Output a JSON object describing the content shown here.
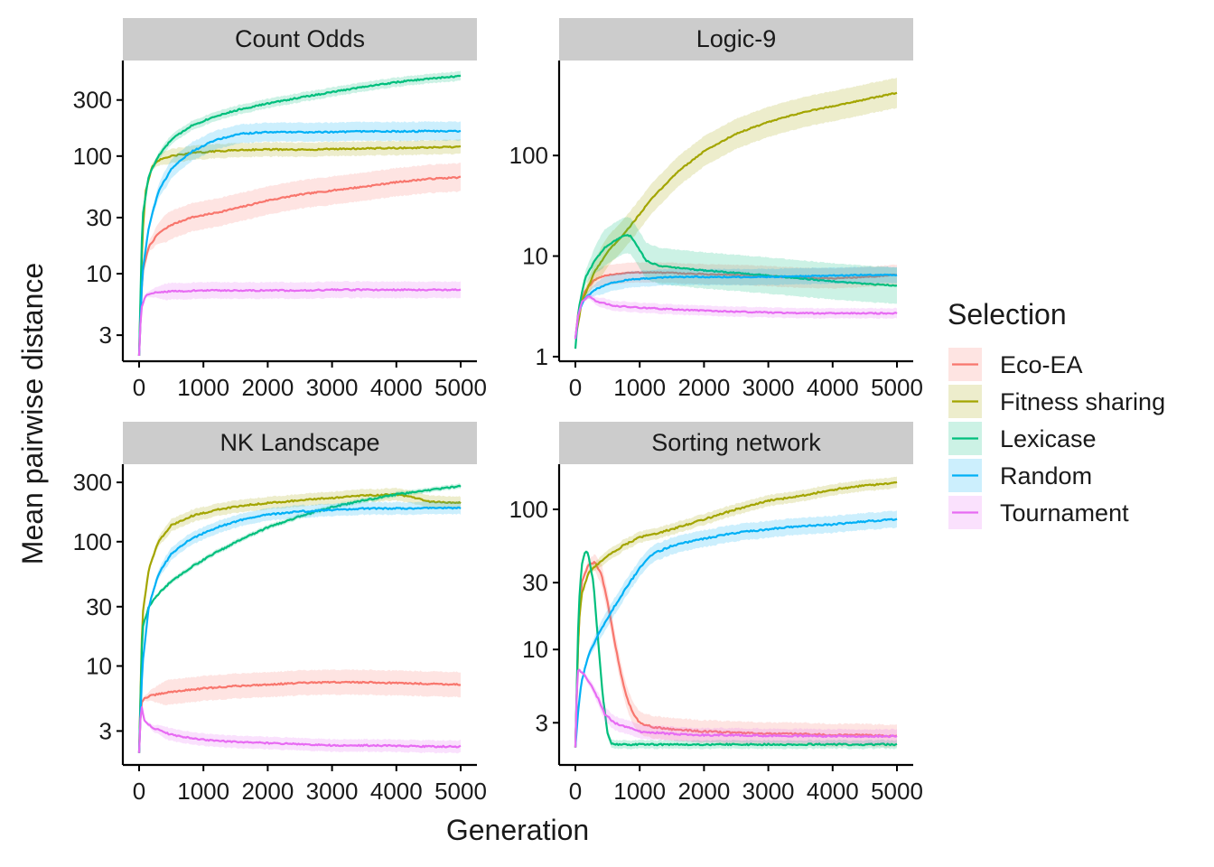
{
  "colors": {
    "Eco-EA": "#F8766D",
    "Fitness sharing": "#A3A500",
    "Lexicase": "#00BF7D",
    "Random": "#00B0F6",
    "Tournament": "#E76BF3",
    "strip": "#cccccc",
    "axis": "#000000"
  },
  "chart_data": {
    "type": "line",
    "x_label": "Generation",
    "y_label": "Mean pairwise distance",
    "y_scale": "log10",
    "grid": false,
    "legend": {
      "title": "Selection",
      "position": "right",
      "entries": [
        "Eco-EA",
        "Fitness sharing",
        "Lexicase",
        "Random",
        "Tournament"
      ]
    },
    "panels": [
      {
        "title": "Count Odds",
        "xlim": [
          0,
          5000
        ],
        "x_ticks": [
          0,
          1000,
          2000,
          3000,
          4000,
          5000
        ],
        "x_tick_labels": [
          "0",
          "1000",
          "2000",
          "3000",
          "4000",
          "5000"
        ],
        "ylim": [
          1.8,
          650
        ],
        "y_ticks": [
          3,
          10,
          30,
          100,
          300
        ],
        "y_tick_labels": [
          "3",
          "10",
          "30",
          "100",
          "300"
        ],
        "series": [
          {
            "name": "Eco-EA",
            "x": [
              0,
              50,
              150,
              300,
              500,
              800,
              1200,
              1600,
              2000,
              2500,
              3000,
              3500,
              4000,
              4500,
              5000
            ],
            "y": [
              2,
              10,
              17,
              22,
              26,
              30,
              33,
              37,
              42,
              47,
              51,
              55,
              60,
              64,
              66
            ],
            "band": 0.12
          },
          {
            "name": "Fitness sharing",
            "x": [
              0,
              50,
              100,
              200,
              300,
              500,
              800,
              1200,
              1600,
              2000,
              2500,
              3000,
              3500,
              4000,
              4500,
              5000
            ],
            "y": [
              2,
              20,
              50,
              80,
              92,
              100,
              106,
              110,
              113,
              114,
              113,
              115,
              116,
              117,
              118,
              120
            ],
            "band": 0.06
          },
          {
            "name": "Lexicase",
            "x": [
              0,
              50,
              150,
              300,
              500,
              800,
              1200,
              1600,
              2000,
              2500,
              3000,
              3500,
              4000,
              4500,
              5000
            ],
            "y": [
              2,
              30,
              68,
              100,
              138,
              180,
              220,
              252,
              280,
              315,
              350,
              390,
              425,
              455,
              480
            ],
            "band": 0.04
          },
          {
            "name": "Random",
            "x": [
              0,
              50,
              150,
              300,
              500,
              800,
              1200,
              1600,
              2000,
              2500,
              3000,
              3500,
              4000,
              4500,
              5000
            ],
            "y": [
              2,
              10,
              25,
              50,
              78,
              108,
              138,
              155,
              160,
              160,
              160,
              162,
              162,
              163,
              163
            ],
            "band": 0.08
          },
          {
            "name": "Tournament",
            "x": [
              0,
              30,
              100,
              300,
              600,
              1000,
              1500,
              2000,
              2500,
              3000,
              3500,
              4000,
              4500,
              5000
            ],
            "y": [
              2,
              5,
              6.5,
              7,
              7.1,
              7.2,
              7.2,
              7.2,
              7.2,
              7.3,
              7.3,
              7.3,
              7.3,
              7.3
            ],
            "band": 0.07
          }
        ]
      },
      {
        "title": "Logic-9",
        "xlim": [
          0,
          5000
        ],
        "x_ticks": [
          0,
          1000,
          2000,
          3000,
          4000,
          5000
        ],
        "x_tick_labels": [
          "0",
          "1000",
          "2000",
          "3000",
          "4000",
          "5000"
        ],
        "ylim": [
          0.9,
          880
        ],
        "y_ticks": [
          1,
          10,
          100
        ],
        "y_tick_labels": [
          "1",
          "10",
          "100"
        ],
        "series": [
          {
            "name": "Eco-EA",
            "x": [
              0,
              50,
              150,
              300,
              500,
              800,
              1100,
              1500,
              2000,
              2500,
              3000,
              3500,
              4000,
              4500,
              5000
            ],
            "y": [
              1.5,
              3,
              4.5,
              5.8,
              6.5,
              6.8,
              6.9,
              6.8,
              6.6,
              6.5,
              6.3,
              6.1,
              6.0,
              6.2,
              6.5
            ],
            "band": 0.1
          },
          {
            "name": "Fitness sharing",
            "x": [
              0,
              100,
              300,
              500,
              800,
              1200,
              1600,
              2000,
              2500,
              3000,
              3500,
              4000,
              4500,
              5000
            ],
            "y": [
              1.5,
              3.5,
              7,
              11,
              18,
              38,
              70,
              110,
              165,
              215,
              265,
              310,
              360,
              420
            ],
            "band": 0.15
          },
          {
            "name": "Lexicase",
            "x": [
              0,
              50,
              150,
              300,
              450,
              600,
              750,
              850,
              950,
              1100,
              1300,
              1600,
              2000,
              2500,
              3000,
              3500,
              4000,
              4500,
              5000
            ],
            "y": [
              1.2,
              3,
              6,
              9,
              12,
              14,
              16,
              16,
              13,
              9,
              8,
              7.6,
              7.2,
              6.8,
              6.4,
              6.0,
              5.6,
              5.3,
              5.1
            ],
            "band": 0.18
          },
          {
            "name": "Random",
            "x": [
              0,
              50,
              150,
              300,
              500,
              800,
              1100,
              1500,
              2000,
              2500,
              3000,
              3500,
              4000,
              4500,
              5000
            ],
            "y": [
              1.5,
              2.8,
              3.8,
              4.6,
              5.3,
              5.8,
              6.0,
              6.2,
              6.2,
              6.2,
              6.2,
              6.3,
              6.4,
              6.5,
              6.5
            ],
            "band": 0.08
          },
          {
            "name": "Tournament",
            "x": [
              0,
              40,
              100,
              200,
              350,
              600,
              900,
              1300,
              1800,
              2500,
              3000,
              3500,
              4000,
              4500,
              5000
            ],
            "y": [
              1.5,
              2.5,
              3.5,
              4.0,
              3.5,
              3.2,
              3.1,
              3.0,
              2.9,
              2.8,
              2.75,
              2.7,
              2.7,
              2.7,
              2.7
            ],
            "band": 0.05
          }
        ]
      },
      {
        "title": "NK Landscape",
        "xlim": [
          0,
          5000
        ],
        "x_ticks": [
          0,
          1000,
          2000,
          3000,
          4000,
          5000
        ],
        "x_tick_labels": [
          "0",
          "1000",
          "2000",
          "3000",
          "4000",
          "5000"
        ],
        "ylim": [
          1.6,
          420
        ],
        "y_ticks": [
          3,
          10,
          30,
          100,
          300
        ],
        "y_tick_labels": [
          "3",
          "10",
          "30",
          "100",
          "300"
        ],
        "series": [
          {
            "name": "Eco-EA",
            "x": [
              0,
              30,
              80,
              200,
              500,
              1000,
              1500,
              2000,
              2500,
              3000,
              3500,
              4000,
              4500,
              5000
            ],
            "y": [
              2,
              5,
              5.5,
              5.8,
              6.2,
              6.6,
              6.9,
              7.1,
              7.3,
              7.4,
              7.4,
              7.3,
              7.2,
              7.1
            ],
            "band": 0.1
          },
          {
            "name": "Fitness sharing",
            "x": [
              0,
              50,
              150,
              300,
              500,
              800,
              1200,
              1600,
              2000,
              2500,
              3000,
              3500,
              4000,
              4300,
              4500,
              5000
            ],
            "y": [
              2,
              25,
              60,
              100,
              135,
              160,
              180,
              195,
              205,
              215,
              225,
              235,
              240,
              225,
              210,
              205
            ],
            "band": 0.05
          },
          {
            "name": "Lexicase",
            "x": [
              0,
              50,
              150,
              300,
              500,
              800,
              1200,
              1600,
              2000,
              2500,
              3000,
              3500,
              4000,
              4500,
              5000
            ],
            "y": [
              2,
              20,
              30,
              38,
              48,
              62,
              82,
              105,
              130,
              160,
              190,
              215,
              240,
              260,
              280
            ],
            "band": 0.02
          },
          {
            "name": "Random",
            "x": [
              0,
              50,
              150,
              300,
              500,
              800,
              1200,
              1600,
              2000,
              2500,
              3000,
              3500,
              4000,
              4500,
              5000
            ],
            "y": [
              2,
              10,
              30,
              55,
              80,
              105,
              130,
              150,
              165,
              175,
              180,
              185,
              185,
              186,
              187
            ],
            "band": 0.05
          },
          {
            "name": "Tournament",
            "x": [
              0,
              30,
              80,
              200,
              500,
              1000,
              1500,
              2000,
              2500,
              3000,
              3500,
              4000,
              4500,
              5000
            ],
            "y": [
              2,
              5,
              3.7,
              3.2,
              2.8,
              2.55,
              2.45,
              2.4,
              2.35,
              2.3,
              2.3,
              2.28,
              2.25,
              2.25
            ],
            "band": 0.05
          }
        ]
      },
      {
        "title": "Sorting network",
        "xlim": [
          0,
          5000
        ],
        "x_ticks": [
          0,
          1000,
          2000,
          3000,
          4000,
          5000
        ],
        "x_tick_labels": [
          "0",
          "1000",
          "2000",
          "3000",
          "4000",
          "5000"
        ],
        "ylim": [
          1.5,
          210
        ],
        "y_ticks": [
          3,
          10,
          30,
          100
        ],
        "y_tick_labels": [
          "3",
          "10",
          "30",
          "100"
        ],
        "series": [
          {
            "name": "Eco-EA",
            "x": [
              0,
              50,
              100,
              200,
              300,
              400,
              500,
              600,
              700,
              800,
              900,
              1000,
              1200,
              1500,
              2000,
              2500,
              3000,
              3500,
              4000,
              4500,
              5000
            ],
            "y": [
              2,
              15,
              30,
              40,
              42,
              35,
              22,
              12,
              7,
              4.5,
              3.5,
              3.0,
              2.8,
              2.7,
              2.6,
              2.55,
              2.5,
              2.5,
              2.45,
              2.45,
              2.4
            ],
            "band": 0.08
          },
          {
            "name": "Fitness sharing",
            "x": [
              0,
              50,
              100,
              200,
              400,
              600,
              800,
              1000,
              1500,
              2000,
              2500,
              3000,
              3500,
              4000,
              4500,
              5000
            ],
            "y": [
              2,
              15,
              25,
              35,
              43,
              50,
              57,
              63,
              72,
              85,
              100,
              115,
              125,
              138,
              148,
              155
            ],
            "band": 0.04
          },
          {
            "name": "Lexicase",
            "x": [
              0,
              50,
              100,
              150,
              200,
              280,
              350,
              420,
              500,
              560,
              650,
              800,
              1000,
              2000,
              3000,
              4000,
              5000
            ],
            "y": [
              2,
              20,
              40,
              50,
              48,
              30,
              12,
              5,
              2.5,
              2.15,
              2.1,
              2.1,
              2.1,
              2.1,
              2.1,
              2.1,
              2.1
            ],
            "band": 0.03
          },
          {
            "name": "Random",
            "x": [
              0,
              50,
              100,
              200,
              400,
              600,
              800,
              1000,
              1200,
              1500,
              2000,
              2500,
              3000,
              3500,
              4000,
              4500,
              5000
            ],
            "y": [
              2,
              4,
              6,
              9,
              14,
              20,
              28,
              38,
              48,
              55,
              62,
              68,
              72,
              76,
              78,
              82,
              85
            ],
            "band": 0.06
          },
          {
            "name": "Tournament",
            "x": [
              0,
              30,
              60,
              150,
              250,
              350,
              450,
              600,
              800,
              1000,
              1500,
              2000,
              2500,
              3000,
              3500,
              4000,
              4500,
              5000
            ],
            "y": [
              2,
              7,
              7.2,
              6.5,
              5.5,
              4.5,
              3.5,
              3.0,
              2.8,
              2.6,
              2.5,
              2.45,
              2.45,
              2.42,
              2.42,
              2.4,
              2.4,
              2.4
            ],
            "band": 0.05
          }
        ]
      }
    ]
  }
}
